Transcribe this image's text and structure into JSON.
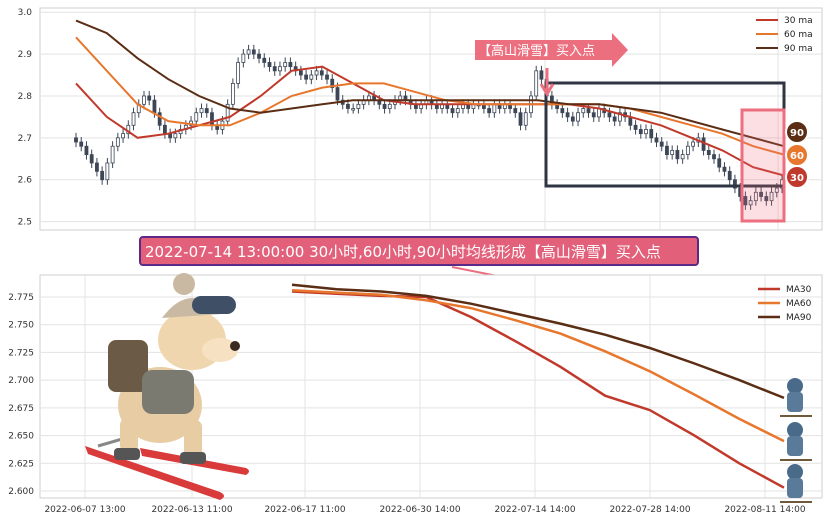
{
  "colors": {
    "ma30": "#c0392b",
    "ma60": "#e8772e",
    "ma90": "#5a2d14",
    "candle": "#3d4656",
    "callout": "#ec6f7f",
    "banner_bg": "#e3607a",
    "banner_border": "#5b2a86",
    "box": "#2f3542",
    "pink_box": "#ec6f7f"
  },
  "banner": {
    "text": "2022-07-14 13:00:00 30小时,60小时,90小时均线形成【高山滑雪】买入点"
  },
  "callout": {
    "text": "【高山滑雪】买入点"
  },
  "badges": [
    "90",
    "60",
    "30"
  ],
  "decor": {
    "dog_icon": "skiing-dog-icon",
    "skier_icon": "skier-icon"
  },
  "chart_data": [
    {
      "type": "line",
      "chart": "price-candles-with-ma",
      "yticks": [
        "3.0",
        "2.9",
        "2.8",
        "2.7",
        "2.6",
        "2.5"
      ],
      "ylim": [
        2.48,
        3.01
      ],
      "legend": {
        "position": "top-right",
        "entries": [
          "30 ma",
          "60 ma",
          "90 ma"
        ]
      },
      "grid": true,
      "series": [
        {
          "name": "30 ma",
          "x": [
            0,
            8,
            16,
            24,
            32,
            40,
            48,
            56,
            64,
            72,
            80,
            88,
            96,
            104,
            112,
            120,
            128,
            136,
            144,
            152,
            160,
            168,
            176,
            184
          ],
          "values": [
            2.83,
            2.75,
            2.7,
            2.71,
            2.73,
            2.75,
            2.8,
            2.86,
            2.87,
            2.83,
            2.79,
            2.78,
            2.78,
            2.78,
            2.78,
            2.78,
            2.78,
            2.77,
            2.75,
            2.73,
            2.7,
            2.67,
            2.63,
            2.61
          ]
        },
        {
          "name": "60 ma",
          "x": [
            0,
            8,
            16,
            24,
            32,
            40,
            48,
            56,
            64,
            72,
            80,
            88,
            96,
            104,
            112,
            120,
            128,
            136,
            144,
            152,
            160,
            168,
            176,
            184
          ],
          "values": [
            2.94,
            2.86,
            2.78,
            2.74,
            2.73,
            2.73,
            2.76,
            2.8,
            2.82,
            2.83,
            2.83,
            2.81,
            2.79,
            2.78,
            2.78,
            2.78,
            2.78,
            2.78,
            2.77,
            2.75,
            2.73,
            2.71,
            2.68,
            2.66
          ]
        },
        {
          "name": "90 ma",
          "x": [
            0,
            8,
            16,
            24,
            32,
            40,
            48,
            56,
            64,
            72,
            80,
            88,
            96,
            104,
            112,
            120,
            128,
            136,
            144,
            152,
            160,
            168,
            176,
            184
          ],
          "values": [
            2.98,
            2.95,
            2.89,
            2.84,
            2.8,
            2.77,
            2.76,
            2.77,
            2.78,
            2.79,
            2.79,
            2.79,
            2.79,
            2.79,
            2.79,
            2.79,
            2.78,
            2.78,
            2.77,
            2.76,
            2.74,
            2.72,
            2.7,
            2.68
          ]
        }
      ],
      "candles_close": [
        2.69,
        2.68,
        2.66,
        2.64,
        2.62,
        2.6,
        2.64,
        2.68,
        2.7,
        2.71,
        2.73,
        2.76,
        2.78,
        2.8,
        2.79,
        2.76,
        2.73,
        2.71,
        2.7,
        2.71,
        2.72,
        2.73,
        2.74,
        2.76,
        2.77,
        2.76,
        2.73,
        2.72,
        2.74,
        2.78,
        2.83,
        2.88,
        2.9,
        2.91,
        2.9,
        2.89,
        2.88,
        2.87,
        2.86,
        2.87,
        2.88,
        2.87,
        2.86,
        2.85,
        2.84,
        2.85,
        2.86,
        2.85,
        2.84,
        2.82,
        2.79,
        2.78,
        2.77,
        2.77,
        2.78,
        2.79,
        2.8,
        2.79,
        2.78,
        2.77,
        2.78,
        2.79,
        2.8,
        2.79,
        2.78,
        2.77,
        2.78,
        2.79,
        2.78,
        2.77,
        2.78,
        2.77,
        2.76,
        2.77,
        2.78,
        2.77,
        2.78,
        2.78,
        2.77,
        2.76,
        2.78,
        2.77,
        2.78,
        2.77,
        2.76,
        2.73,
        2.76,
        2.8,
        2.86,
        2.84,
        2.8,
        2.78,
        2.77,
        2.76,
        2.75,
        2.74,
        2.76,
        2.77,
        2.76,
        2.75,
        2.77,
        2.76,
        2.75,
        2.74,
        2.76,
        2.75,
        2.73,
        2.72,
        2.71,
        2.72,
        2.7,
        2.69,
        2.68,
        2.66,
        2.67,
        2.65,
        2.66,
        2.68,
        2.69,
        2.7,
        2.67,
        2.66,
        2.65,
        2.63,
        2.62,
        2.6,
        2.58,
        2.56,
        2.54,
        2.55,
        2.57,
        2.56,
        2.55,
        2.57,
        2.58,
        2.6
      ]
    },
    {
      "type": "line",
      "chart": "ma-zoom",
      "yticks": [
        "2.775",
        "2.750",
        "2.725",
        "2.700",
        "2.675",
        "2.650",
        "2.625",
        "2.600"
      ],
      "ylim": [
        2.595,
        2.787
      ],
      "xticks": [
        "2022-06-07 13:00",
        "2022-06-13 11:00",
        "2022-06-17 11:00",
        "2022-06-30 14:00",
        "2022-07-14 14:00",
        "2022-07-28 14:00",
        "2022-08-11 14:00"
      ],
      "legend": {
        "position": "top-right",
        "entries": [
          "MA30",
          "MA60",
          "MA90"
        ]
      },
      "grid": true,
      "series": [
        {
          "name": "MA30",
          "x": [
            0,
            10,
            20,
            30,
            40,
            50,
            60,
            70,
            80,
            90,
            100,
            110
          ],
          "values": [
            2.78,
            2.778,
            2.776,
            2.775,
            2.757,
            2.735,
            2.712,
            2.686,
            2.673,
            2.65,
            2.625,
            2.603
          ]
        },
        {
          "name": "MA60",
          "x": [
            0,
            10,
            20,
            30,
            40,
            50,
            60,
            70,
            80,
            90,
            100,
            110
          ],
          "values": [
            2.781,
            2.779,
            2.777,
            2.772,
            2.765,
            2.754,
            2.742,
            2.726,
            2.708,
            2.687,
            2.665,
            2.645
          ]
        },
        {
          "name": "MA90",
          "x": [
            0,
            10,
            20,
            30,
            40,
            50,
            60,
            70,
            80,
            90,
            100,
            110
          ],
          "values": [
            2.786,
            2.782,
            2.78,
            2.776,
            2.769,
            2.76,
            2.751,
            2.741,
            2.729,
            2.715,
            2.7,
            2.684
          ]
        }
      ]
    }
  ]
}
